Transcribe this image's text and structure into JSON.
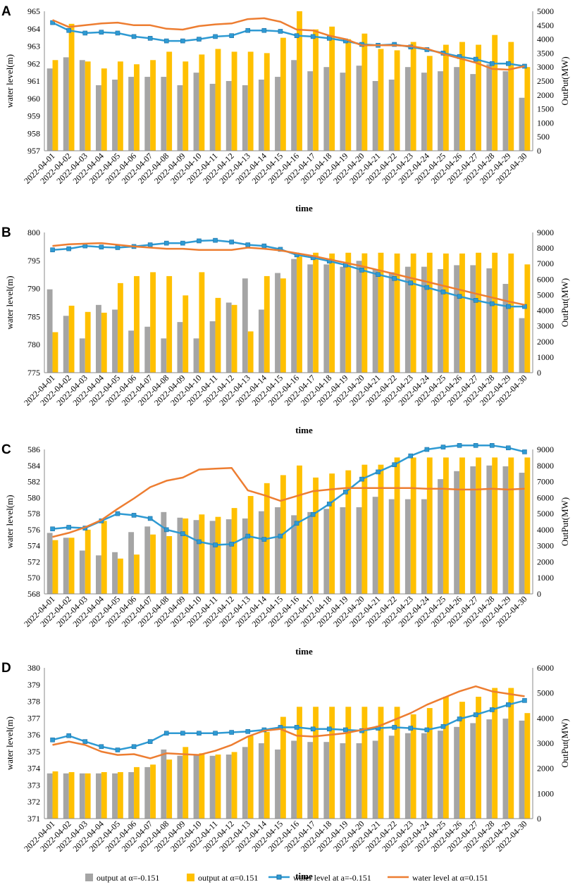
{
  "colors": {
    "output_neg": "#a5a5a5",
    "output_pos": "#ffc000",
    "level_neg": "#2e9ad3",
    "level_pos": "#ed7d31",
    "axis": "#888888",
    "marker_edge": "#1f6fa3"
  },
  "legend": {
    "output_neg": "output at α=-0.151",
    "output_pos": "output at α=0.151",
    "level_neg": "water level at a=-0.151",
    "level_pos": "water level at α=0.151"
  },
  "chart_data": [
    {
      "panel": "A",
      "type": "bar+line",
      "xlabel": "time",
      "ylabel_left": "water level(m)",
      "ylabel_right": "OutPut(MW)",
      "ylim_left": [
        957,
        965
      ],
      "yticks_left": [
        "957",
        "958",
        "959",
        "960",
        "961",
        "962",
        "963",
        "964",
        "965"
      ],
      "ylim_right": [
        0,
        5000
      ],
      "yticks_right": [
        "0",
        "500",
        "1000",
        "1500",
        "2000",
        "2500",
        "3000",
        "3500",
        "4000",
        "4500",
        "5000"
      ],
      "categories": [
        "2022-04-01",
        "2022-04-02",
        "2022-04-03",
        "2022-04-04",
        "2022-04-05",
        "2022-04-06",
        "2022-04-07",
        "2022-04-08",
        "2022-04-09",
        "2022-04-10",
        "2022-04-11",
        "2022-04-12",
        "2022-04-13",
        "2022-04-14",
        "2022-04-15",
        "2022-04-16",
        "2022-04-17",
        "2022-04-18",
        "2022-04-19",
        "2022-04-20",
        "2022-04-21",
        "2022-04-22",
        "2022-04-23",
        "2022-04-24",
        "2022-04-25",
        "2022-04-26",
        "2022-04-27",
        "2022-04-28",
        "2022-04-29",
        "2022-04-30"
      ],
      "series": [
        {
          "name": "output at α=-0.151",
          "kind": "bar",
          "axis": "right",
          "values": [
            2950,
            3350,
            3250,
            2350,
            2550,
            2650,
            2650,
            2650,
            2350,
            2800,
            2400,
            2500,
            2350,
            2550,
            2650,
            3250,
            2850,
            3000,
            2800,
            3050,
            2500,
            2550,
            3000,
            2800,
            2850,
            3000,
            2750,
            3100,
            2850,
            1900
          ]
        },
        {
          "name": "output at α=0.151",
          "kind": "bar",
          "axis": "right",
          "values": [
            3250,
            4550,
            3200,
            2950,
            3200,
            3100,
            3250,
            3550,
            3200,
            3450,
            3650,
            3550,
            3550,
            3500,
            4050,
            5000,
            4350,
            4450,
            4000,
            4200,
            3650,
            3600,
            3900,
            3400,
            3800,
            3900,
            3800,
            4150,
            3900,
            3000
          ]
        },
        {
          "name": "water level at a=-0.151",
          "kind": "line",
          "marker": "square",
          "axis": "left",
          "values": [
            964.35,
            963.9,
            963.75,
            963.8,
            963.75,
            963.55,
            963.45,
            963.3,
            963.3,
            963.4,
            963.55,
            963.6,
            963.9,
            963.9,
            963.85,
            963.6,
            963.55,
            963.45,
            963.3,
            963.1,
            963.05,
            963.1,
            962.95,
            962.8,
            962.6,
            962.4,
            962.25,
            962.0,
            962.0,
            961.85
          ]
        },
        {
          "name": "water level at α=0.151",
          "kind": "line",
          "axis": "left",
          "values": [
            964.5,
            964.1,
            964.2,
            964.3,
            964.35,
            964.2,
            964.2,
            964.0,
            963.95,
            964.15,
            964.25,
            964.3,
            964.55,
            964.6,
            964.4,
            963.95,
            963.9,
            963.6,
            963.4,
            963.05,
            963.05,
            963.05,
            963.0,
            962.85,
            962.55,
            962.3,
            962.05,
            961.7,
            961.65,
            961.85
          ]
        }
      ]
    },
    {
      "panel": "B",
      "type": "bar+line",
      "xlabel": "time",
      "ylabel_left": "water level(m)",
      "ylabel_right": "OutPut(MW)",
      "ylim_left": [
        775,
        800
      ],
      "yticks_left": [
        "775",
        "780",
        "785",
        "790",
        "795",
        "800"
      ],
      "ylim_right": [
        0,
        9000
      ],
      "yticks_right": [
        "0",
        "1000",
        "2000",
        "3000",
        "4000",
        "5000",
        "6000",
        "7000",
        "8000",
        "9000"
      ],
      "categories": [
        "2022-04-01",
        "2022-04-02",
        "2022-04-03",
        "2022-04-04",
        "2022-04-05",
        "2022-04-06",
        "2022-04-07",
        "2022-04-08",
        "2022-04-09",
        "2022-04-10",
        "2022-04-11",
        "2022-04-12",
        "2022-04-13",
        "2022-04-14",
        "2022-04-15",
        "2022-04-16",
        "2022-04-17",
        "2022-04-18",
        "2022-04-19",
        "2022-04-20",
        "2022-04-21",
        "2022-04-22",
        "2022-04-23",
        "2022-04-24",
        "2022-04-25",
        "2022-04-26",
        "2022-04-27",
        "2022-04-28",
        "2022-04-29",
        "2022-04-30"
      ],
      "series": [
        {
          "name": "output at α=-0.151",
          "kind": "bar",
          "axis": "right",
          "values": [
            5350,
            3650,
            2200,
            4350,
            4050,
            2700,
            2950,
            2200,
            3250,
            2200,
            3300,
            4500,
            6050,
            4050,
            6400,
            7300,
            6950,
            6950,
            6800,
            7180,
            6650,
            6450,
            6800,
            6800,
            6650,
            6900,
            6900,
            6700,
            5700,
            3500
          ]
        },
        {
          "name": "output at α=0.151",
          "kind": "bar",
          "axis": "right",
          "values": [
            2600,
            4300,
            3900,
            3850,
            5750,
            6200,
            6450,
            6200,
            4960,
            6450,
            4800,
            4350,
            2650,
            6200,
            6050,
            7450,
            7700,
            7650,
            7700,
            7660,
            7700,
            7650,
            7650,
            7700,
            7650,
            7650,
            7700,
            7700,
            7650,
            6950
          ]
        },
        {
          "name": "water level at a=-0.151",
          "kind": "line",
          "marker": "square",
          "axis": "left",
          "values": [
            796.9,
            797.1,
            797.6,
            797.4,
            797.3,
            797.5,
            797.8,
            798.1,
            798.1,
            798.5,
            798.6,
            798.3,
            797.8,
            797.6,
            797.0,
            796.0,
            795.5,
            794.9,
            794.2,
            793.3,
            792.5,
            791.8,
            791.0,
            790.2,
            789.4,
            788.6,
            787.9,
            787.3,
            786.8,
            786.8
          ]
        },
        {
          "name": "water level at α=0.151",
          "kind": "line",
          "axis": "left",
          "values": [
            797.6,
            797.9,
            798.0,
            798.1,
            797.8,
            797.5,
            797.3,
            797.1,
            797.1,
            796.9,
            796.9,
            796.9,
            797.3,
            797.1,
            796.8,
            796.3,
            795.8,
            795.2,
            794.6,
            794.0,
            793.3,
            792.6,
            791.9,
            791.2,
            790.5,
            789.8,
            789.1,
            788.4,
            787.7,
            787.1
          ]
        }
      ]
    },
    {
      "panel": "C",
      "type": "bar+line",
      "xlabel": "time",
      "ylabel_left": "water level(m)",
      "ylabel_right": "OutPut(MW)",
      "ylim_left": [
        568,
        586
      ],
      "yticks_left": [
        "568",
        "570",
        "572",
        "574",
        "576",
        "578",
        "580",
        "582",
        "584",
        "586"
      ],
      "ylim_right": [
        0,
        9000
      ],
      "yticks_right": [
        "0",
        "1000",
        "2000",
        "3000",
        "4000",
        "5000",
        "6000",
        "7000",
        "8000",
        "9000"
      ],
      "categories": [
        "2022-04-01",
        "2022-04-02",
        "2022-04-03",
        "2022-04-04",
        "2022-04-05",
        "2022-04-06",
        "2022-04-07",
        "2022-04-08",
        "2022-04-09",
        "2022-04-10",
        "2022-04-11",
        "2022-04-12",
        "2022-04-13",
        "2022-04-14",
        "2022-04-15",
        "2022-04-16",
        "2022-04-17",
        "2022-04-18",
        "2022-04-19",
        "2022-04-20",
        "2022-04-21",
        "2022-04-22",
        "2022-04-23",
        "2022-04-24",
        "2022-04-25",
        "2022-04-26",
        "2022-04-27",
        "2022-04-28",
        "2022-04-29",
        "2022-04-30"
      ],
      "series": [
        {
          "name": "output at α=-0.151",
          "kind": "bar",
          "axis": "right",
          "values": [
            3800,
            3500,
            2700,
            2400,
            2600,
            3850,
            4200,
            5100,
            4750,
            4600,
            4550,
            4650,
            4700,
            5150,
            5400,
            4900,
            5100,
            5300,
            5400,
            5400,
            6050,
            5900,
            5900,
            5900,
            7150,
            7650,
            7950,
            8000,
            7950,
            7550
          ]
        },
        {
          "name": "output at α=0.151",
          "kind": "bar",
          "axis": "right",
          "values": [
            3350,
            3500,
            4000,
            4550,
            2200,
            2450,
            3700,
            3600,
            4700,
            4950,
            4800,
            5350,
            6100,
            6900,
            7400,
            8000,
            7250,
            7500,
            7700,
            8050,
            8050,
            8500,
            8500,
            8500,
            8500,
            8500,
            8500,
            8500,
            8500,
            8500
          ]
        },
        {
          "name": "water level at a=-0.151",
          "kind": "line",
          "marker": "square",
          "axis": "left",
          "values": [
            576.1,
            576.3,
            576.2,
            577.1,
            578.0,
            577.8,
            577.4,
            576.0,
            575.5,
            574.5,
            574.1,
            574.2,
            575.2,
            574.8,
            575.2,
            576.8,
            577.9,
            579.2,
            580.7,
            582.3,
            583.2,
            584.1,
            585.2,
            586.0,
            586.3,
            586.5,
            586.5,
            586.5,
            586.2,
            585.7
          ]
        },
        {
          "name": "water level at α=0.151",
          "kind": "line",
          "axis": "left",
          "values": [
            575.1,
            575.6,
            576.3,
            577.2,
            578.6,
            579.9,
            581.3,
            582.1,
            582.5,
            583.5,
            583.6,
            583.7,
            580.9,
            580.3,
            579.6,
            580.2,
            580.8,
            581.0,
            581.2,
            581.2,
            581.2,
            581.2,
            581.2,
            581.1,
            581.1,
            581.0,
            581.0,
            581.1,
            581.0,
            581.1
          ]
        }
      ]
    },
    {
      "panel": "D",
      "type": "bar+line",
      "xlabel": "time",
      "ylabel_left": "water level(m)",
      "ylabel_right": "OutPut(MW)",
      "ylim_left": [
        371,
        380
      ],
      "yticks_left": [
        "371",
        "372",
        "373",
        "374",
        "375",
        "376",
        "377",
        "378",
        "379",
        "380"
      ],
      "ylim_right": [
        0,
        6000
      ],
      "yticks_right": [
        "0",
        "1000",
        "2000",
        "3000",
        "4000",
        "5000",
        "6000"
      ],
      "categories": [
        "2022-04-01",
        "2022-04-02",
        "2022-04-03",
        "2022-04-04",
        "2022-04-05",
        "2022-04-06",
        "2022-04-07",
        "2022-04-08",
        "2022-04-09",
        "2022-04-10",
        "2022-04-11",
        "2022-04-12",
        "2022-04-13",
        "2022-04-14",
        "2022-04-15",
        "2022-04-16",
        "2022-04-17",
        "2022-04-18",
        "2022-04-19",
        "2022-04-20",
        "2022-04-21",
        "2022-04-22",
        "2022-04-23",
        "2022-04-24",
        "2022-04-25",
        "2022-04-26",
        "2022-04-27",
        "2022-04-28",
        "2022-04-29",
        "2022-04-30"
      ],
      "series": [
        {
          "name": "output at α=-0.151",
          "kind": "bar",
          "axis": "right",
          "values": [
            1800,
            1800,
            1800,
            1800,
            1800,
            1850,
            2050,
            2750,
            2500,
            2550,
            2500,
            2550,
            2850,
            3000,
            2750,
            3100,
            3050,
            3050,
            3000,
            3000,
            3100,
            3300,
            3400,
            3400,
            3500,
            3650,
            3800,
            3950,
            3980,
            3900
          ]
        },
        {
          "name": "output at α=0.151",
          "kind": "bar",
          "axis": "right",
          "values": [
            1880,
            1850,
            1800,
            1850,
            1850,
            2050,
            2150,
            2350,
            2850,
            2600,
            2550,
            2650,
            3300,
            3450,
            4050,
            4450,
            4450,
            4450,
            4450,
            4450,
            4450,
            4450,
            4150,
            4400,
            4850,
            4650,
            4850,
            5200,
            5200,
            4200
          ]
        },
        {
          "name": "water level at a=-0.151",
          "kind": "line",
          "marker": "square",
          "axis": "left",
          "values": [
            375.7,
            375.95,
            375.6,
            375.3,
            375.1,
            375.3,
            375.6,
            376.1,
            376.1,
            376.1,
            376.1,
            376.15,
            376.2,
            376.3,
            376.45,
            376.45,
            376.35,
            376.35,
            376.3,
            376.25,
            376.4,
            376.45,
            376.4,
            376.3,
            376.5,
            376.95,
            377.2,
            377.5,
            377.8,
            378.05
          ]
        },
        {
          "name": "water level at α=0.151",
          "kind": "line",
          "axis": "left",
          "values": [
            375.4,
            375.6,
            375.4,
            375.0,
            374.8,
            374.85,
            374.6,
            374.9,
            374.85,
            374.8,
            375.05,
            375.4,
            375.9,
            376.25,
            376.35,
            375.95,
            375.9,
            376.0,
            376.1,
            376.3,
            376.5,
            376.9,
            377.3,
            377.8,
            378.2,
            378.6,
            378.9,
            378.6,
            378.45,
            378.3
          ]
        }
      ]
    }
  ]
}
